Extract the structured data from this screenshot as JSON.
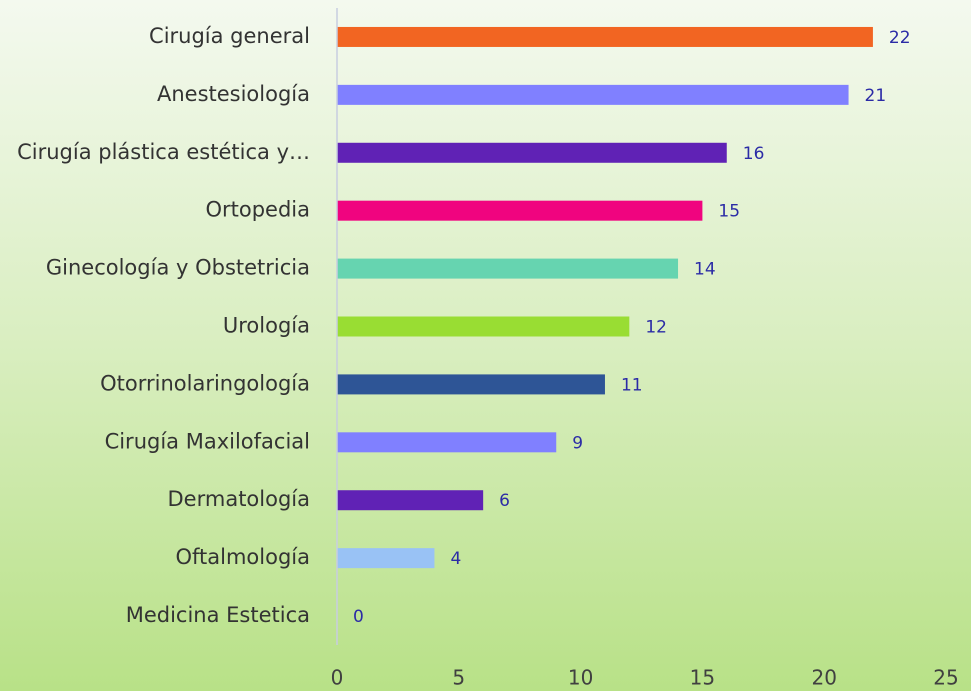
{
  "chart_data": {
    "type": "bar",
    "orientation": "horizontal",
    "categories": [
      "Cirugía general",
      "Anestesiología",
      "Cirugía plástica estética y…",
      "Ortopedia",
      "Ginecología y Obstetricia",
      "Urología",
      "Otorrinolaringología",
      "Cirugía Maxilofacial",
      "Dermatología",
      "Oftalmología",
      "Medicina Estetica"
    ],
    "values": [
      22,
      21,
      16,
      15,
      14,
      12,
      11,
      9,
      6,
      4,
      0
    ],
    "colors": [
      "#f26522",
      "#8080ff",
      "#6022b5",
      "#f0047f",
      "#66d4b0",
      "#99dd33",
      "#2e5596",
      "#8080ff",
      "#6022b5",
      "#99c2f5",
      "#8080ff"
    ],
    "xlim": [
      0,
      25
    ],
    "xticks": [
      0,
      5,
      10,
      15,
      20,
      25
    ],
    "grid": false
  }
}
